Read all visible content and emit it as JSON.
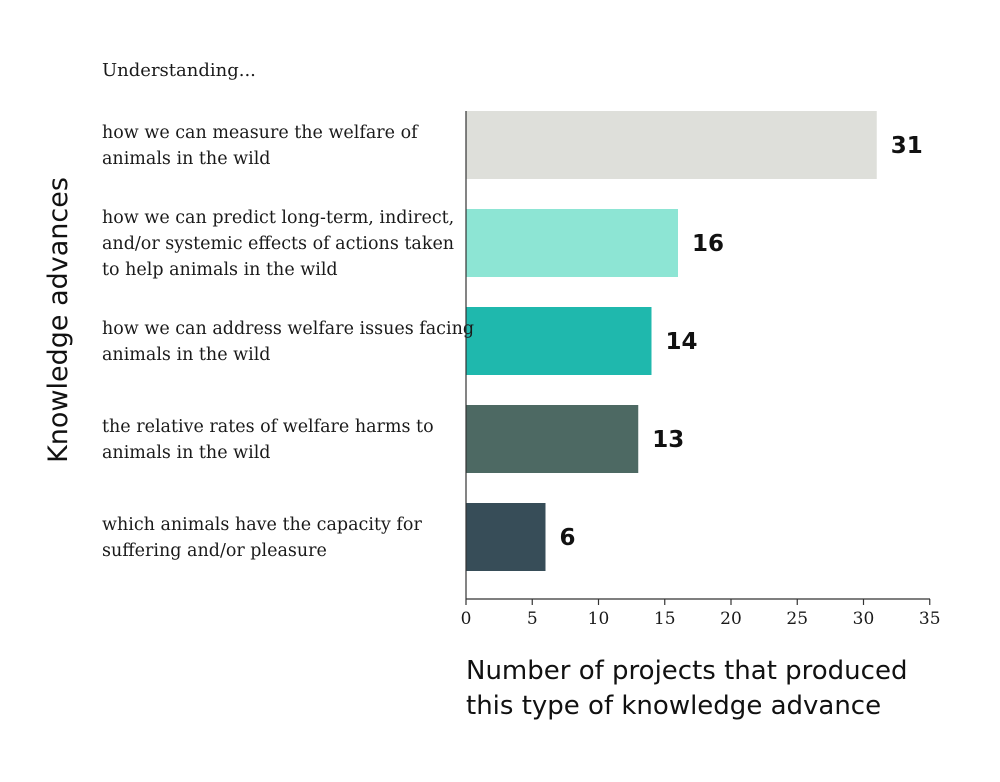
{
  "chart_data": {
    "type": "bar",
    "orientation": "horizontal",
    "category_header": "Understanding...",
    "ylabel": "Knowledge advances",
    "xlabel_lines": [
      "Number of projects that produced",
      "this type of knowledge advance"
    ],
    "categories": [
      [
        "how we can measure the welfare of",
        "animals in the wild"
      ],
      [
        "how we can predict long-term, indirect,",
        "and/or systemic effects of actions taken",
        "to help animals in the wild"
      ],
      [
        "how we can address welfare issues facing",
        "animals in the wild"
      ],
      [
        "the relative rates of welfare harms to",
        "animals in the wild"
      ],
      [
        "which animals have the capacity for",
        "suffering and/or pleasure"
      ]
    ],
    "values": [
      31,
      16,
      14,
      13,
      6
    ],
    "colors": [
      "#dedfda",
      "#8de5d4",
      "#1fb8ad",
      "#4d6963",
      "#374d58"
    ],
    "xlim": [
      0,
      35
    ],
    "xticks": [
      0,
      5,
      10,
      15,
      20,
      25,
      30,
      35
    ],
    "grid": false,
    "data_labels": true
  }
}
